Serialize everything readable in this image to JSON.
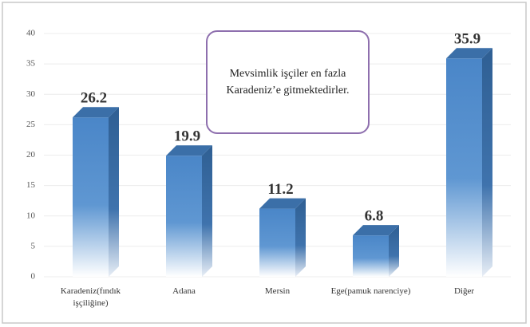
{
  "chart_data": {
    "type": "bar3d",
    "categories": [
      "Karadeniz(fındık işçiliğine)",
      "Adana",
      "Mersin",
      "Ege(pamuk narenciye)",
      "Diğer"
    ],
    "values": [
      26.2,
      19.9,
      11.2,
      6.8,
      35.9
    ],
    "color": "#4a86c8",
    "ylim": [
      0,
      40
    ],
    "yticks": [
      0,
      5,
      10,
      15,
      20,
      25,
      30,
      35,
      40
    ],
    "grid": true,
    "annotation": "Mevsimlik işçiler en fazla Karadeniz’e gitmektedirler."
  }
}
